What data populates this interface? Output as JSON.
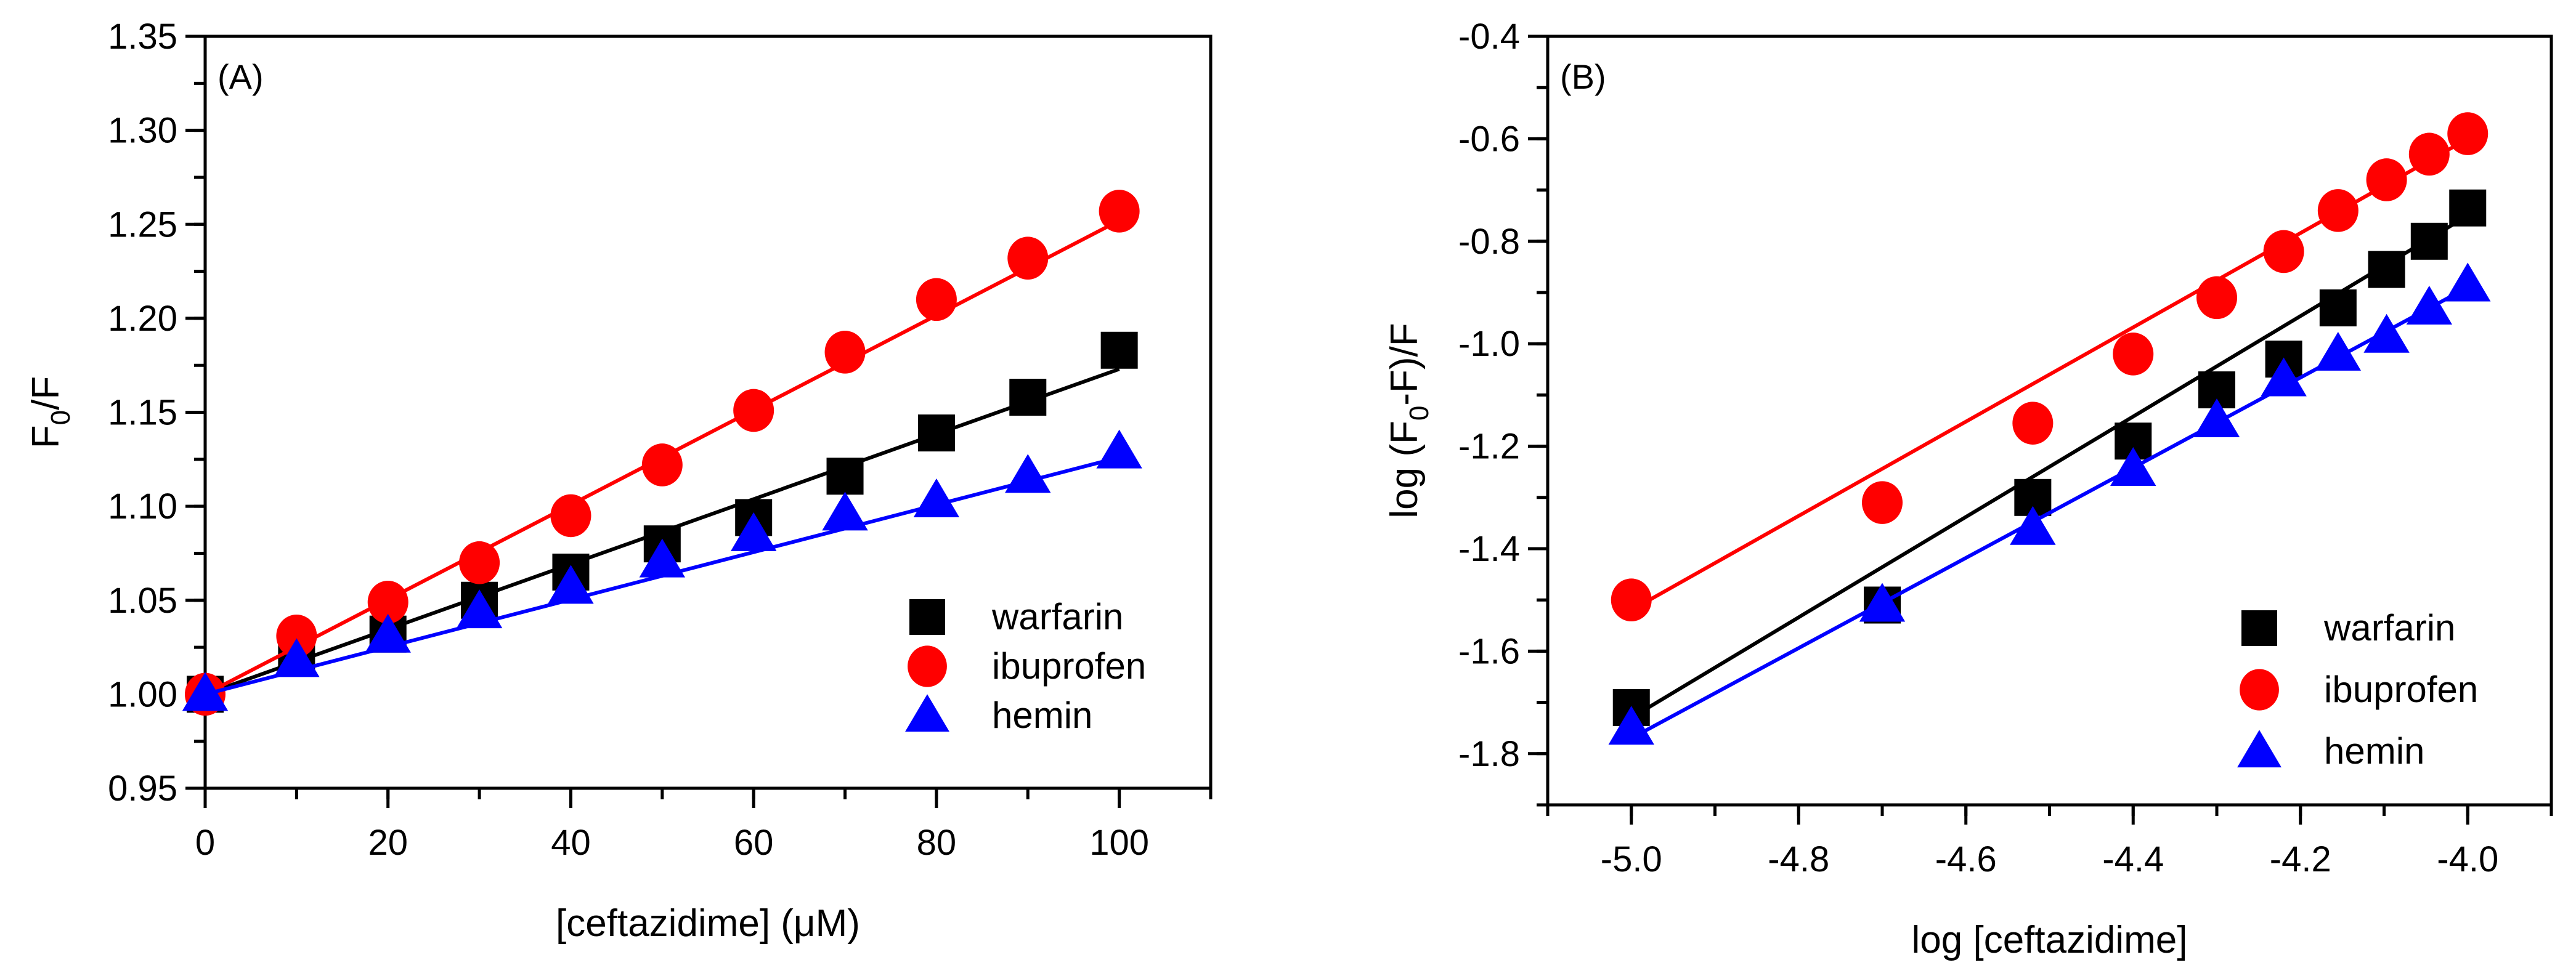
{
  "colors": {
    "warfarin": "#000000",
    "ibuprofen": "#ff0000",
    "hemin": "#0000ff"
  },
  "chart_data": [
    {
      "type": "scatter",
      "panel_label": "(A)",
      "xlabel": "[ceftazidime] (μM)",
      "ylabel_main": "F",
      "ylabel_sub": "0",
      "ylabel_tail": "/F",
      "xlim": [
        0,
        110
      ],
      "ylim": [
        0.95,
        1.35
      ],
      "xticks": [
        0,
        20,
        40,
        60,
        80,
        100
      ],
      "xtick_labels": [
        "0",
        "20",
        "40",
        "60",
        "80",
        "100"
      ],
      "xminor": 10,
      "yticks": [
        0.95,
        1.0,
        1.05,
        1.1,
        1.15,
        1.2,
        1.25,
        1.3,
        1.35
      ],
      "ytick_labels": [
        "0.95",
        "1.00",
        "1.05",
        "1.10",
        "1.15",
        "1.20",
        "1.25",
        "1.30",
        "1.35"
      ],
      "yminor": 0.025,
      "grid": false,
      "legend": "bottom-right",
      "x": [
        0,
        10,
        20,
        30,
        40,
        50,
        60,
        70,
        80,
        90,
        100
      ],
      "series": [
        {
          "name": "warfarin",
          "marker": "square",
          "values": [
            1.0,
            1.02,
            1.032,
            1.05,
            1.065,
            1.08,
            1.094,
            1.116,
            1.139,
            1.158,
            1.183
          ],
          "fit": [
            [
              0,
              1.0
            ],
            [
              100,
              1.173
            ]
          ]
        },
        {
          "name": "ibuprofen",
          "marker": "circle",
          "values": [
            1.0,
            1.031,
            1.049,
            1.07,
            1.095,
            1.122,
            1.151,
            1.182,
            1.21,
            1.232,
            1.257
          ],
          "fit": [
            [
              0,
              1.0
            ],
            [
              100,
              1.252
            ]
          ]
        },
        {
          "name": "hemin",
          "marker": "triangle",
          "values": [
            1.0,
            1.018,
            1.031,
            1.044,
            1.057,
            1.071,
            1.085,
            1.096,
            1.103,
            1.116,
            1.129
          ],
          "fit": [
            [
              0,
              1.0
            ],
            [
              100,
              1.126
            ]
          ]
        }
      ]
    },
    {
      "type": "scatter",
      "panel_label": "(B)",
      "xlabel": "log [ceftazidime]",
      "ylabel_main": "log (F",
      "ylabel_sub": "0",
      "ylabel_tail": "-F)/F",
      "xlim": [
        -5.1,
        -3.9
      ],
      "ylim": [
        -1.9,
        -0.4
      ],
      "xticks": [
        -5.0,
        -4.8,
        -4.6,
        -4.4,
        -4.2,
        -4.0
      ],
      "xtick_labels": [
        "-5.0",
        "-4.8",
        "-4.6",
        "-4.4",
        "-4.2",
        "-4.0"
      ],
      "xminor": 0.1,
      "yticks": [
        -1.8,
        -1.6,
        -1.4,
        -1.2,
        -1.0,
        -0.8,
        -0.6,
        -0.4
      ],
      "ytick_labels": [
        "-1.8",
        "-1.6",
        "-1.4",
        "-1.2",
        "-1.0",
        "-0.8",
        "-0.6",
        "-0.4"
      ],
      "yminor": 0.1,
      "grid": false,
      "legend": "bottom-right",
      "x": [
        -5.0,
        -4.7,
        -4.52,
        -4.4,
        -4.3,
        -4.22,
        -4.155,
        -4.097,
        -4.046,
        -4.0
      ],
      "series": [
        {
          "name": "warfarin",
          "marker": "square",
          "values": [
            -1.71,
            -1.51,
            -1.3,
            -1.19,
            -1.09,
            -1.03,
            -0.93,
            -0.855,
            -0.8,
            -0.735
          ],
          "fit": [
            [
              -5.0,
              -1.73
            ],
            [
              -4.0,
              -0.75
            ]
          ]
        },
        {
          "name": "ibuprofen",
          "marker": "circle",
          "values": [
            -1.5,
            -1.31,
            -1.155,
            -1.02,
            -0.91,
            -0.82,
            -0.74,
            -0.68,
            -0.63,
            -0.59
          ],
          "fit": [
            [
              -5.0,
              -1.52
            ],
            [
              -4.0,
              -0.6
            ]
          ]
        },
        {
          "name": "hemin",
          "marker": "triangle",
          "values": [
            -1.75,
            -1.51,
            -1.36,
            -1.245,
            -1.15,
            -1.07,
            -1.02,
            -0.985,
            -0.93,
            -0.885
          ],
          "fit": [
            [
              -5.0,
              -1.77
            ],
            [
              -4.0,
              -0.89
            ]
          ]
        }
      ]
    }
  ]
}
